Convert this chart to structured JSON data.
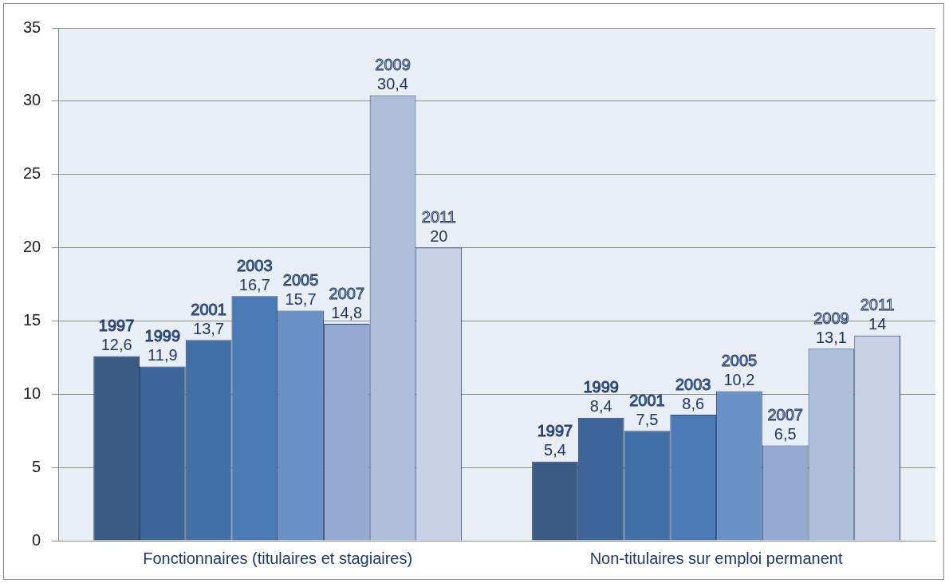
{
  "chart_data": {
    "type": "bar",
    "categories": [
      "Fonctionnaires (titulaires et stagiaires)",
      "Non-titulaires sur emploi permanent"
    ],
    "series": [
      {
        "name": "1997",
        "color": "#3b5a84",
        "values": [
          12.6,
          5.4
        ],
        "value_labels": [
          "12,6",
          "5,4"
        ]
      },
      {
        "name": "1999",
        "color": "#3e6597",
        "values": [
          11.9,
          8.4
        ],
        "value_labels": [
          "11,9",
          "8,4"
        ]
      },
      {
        "name": "2001",
        "color": "#4270a6",
        "values": [
          13.7,
          7.5
        ],
        "value_labels": [
          "13,7",
          "7,5"
        ]
      },
      {
        "name": "2003",
        "color": "#4a7bb7",
        "values": [
          16.7,
          8.6
        ],
        "value_labels": [
          "16,7",
          "8,6"
        ]
      },
      {
        "name": "2005",
        "color": "#6a91c5",
        "values": [
          15.7,
          10.2
        ],
        "value_labels": [
          "15,7",
          "10,2"
        ]
      },
      {
        "name": "2007",
        "color": "#95a9d2",
        "values": [
          14.8,
          6.5
        ],
        "value_labels": [
          "14,8",
          "6,5"
        ]
      },
      {
        "name": "2009",
        "color": "#aebfdc",
        "values": [
          30.4,
          13.1
        ],
        "value_labels": [
          "30,4",
          "13,1"
        ]
      },
      {
        "name": "2011",
        "color": "#c8d1e5",
        "values": [
          20,
          14
        ],
        "value_labels": [
          "20",
          "14"
        ]
      }
    ],
    "ylim": [
      0,
      35
    ],
    "yticks": [
      0,
      5,
      10,
      15,
      20,
      25,
      30,
      35
    ],
    "grid": "y",
    "legend": false
  }
}
